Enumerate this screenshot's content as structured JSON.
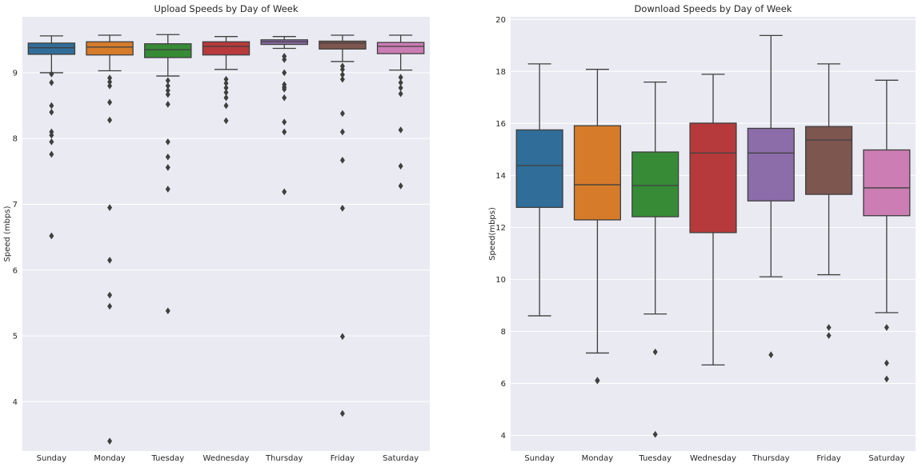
{
  "chart_data": [
    {
      "type": "box",
      "title": "Upload Speeds by Day of Week",
      "xlabel": "",
      "ylabel": "Speed (mbps)",
      "ylim": [
        3.25,
        9.85
      ],
      "yticks": [
        4,
        5,
        6,
        7,
        8,
        9
      ],
      "grid": true,
      "categories": [
        "Sunday",
        "Monday",
        "Tuesday",
        "Wednesday",
        "Thursday",
        "Friday",
        "Saturday"
      ],
      "colors": [
        "#3274a1",
        "#e1812c",
        "#3a923a",
        "#c03d3e",
        "#9372b2",
        "#845b53",
        "#d684bd"
      ],
      "boxes": [
        {
          "whislo": 9.0,
          "q1": 9.28,
          "med": 9.38,
          "q3": 9.45,
          "whishi": 9.56,
          "fliers": [
            8.98,
            8.85,
            8.5,
            8.4,
            8.1,
            8.05,
            7.95,
            7.76,
            6.52
          ]
        },
        {
          "whislo": 9.03,
          "q1": 9.27,
          "med": 9.39,
          "q3": 9.47,
          "whishi": 9.57,
          "fliers": [
            8.92,
            8.86,
            8.8,
            8.55,
            8.28,
            6.95,
            6.15,
            5.62,
            5.45,
            3.4
          ]
        },
        {
          "whislo": 8.95,
          "q1": 9.23,
          "med": 9.35,
          "q3": 9.44,
          "whishi": 9.58,
          "fliers": [
            8.88,
            8.8,
            8.73,
            8.67,
            8.52,
            7.95,
            7.72,
            7.56,
            7.23,
            5.38
          ]
        },
        {
          "whislo": 9.05,
          "q1": 9.27,
          "med": 9.4,
          "q3": 9.47,
          "whishi": 9.55,
          "fliers": [
            8.9,
            8.84,
            8.77,
            8.7,
            8.62,
            8.5,
            8.27
          ]
        },
        {
          "whislo": 9.37,
          "q1": 9.43,
          "med": 9.47,
          "q3": 9.5,
          "whishi": 9.55,
          "fliers": [
            9.25,
            9.2,
            9.0,
            8.82,
            8.78,
            8.75,
            8.62,
            8.25,
            8.1,
            7.19
          ]
        },
        {
          "whislo": 9.17,
          "q1": 9.36,
          "med": 9.45,
          "q3": 9.48,
          "whishi": 9.57,
          "fliers": [
            9.1,
            9.05,
            8.97,
            8.9,
            8.38,
            8.1,
            7.67,
            6.94,
            4.99,
            3.82
          ]
        },
        {
          "whislo": 9.04,
          "q1": 9.29,
          "med": 9.4,
          "q3": 9.46,
          "whishi": 9.57,
          "fliers": [
            8.93,
            8.85,
            8.77,
            8.68,
            8.13,
            7.58,
            7.28
          ]
        }
      ]
    },
    {
      "type": "box",
      "title": "Download Speeds by Day of Week",
      "xlabel": "",
      "ylabel": "Speed(mbps)",
      "ylim": [
        3.4,
        20.1
      ],
      "yticks": [
        4,
        6,
        8,
        10,
        12,
        14,
        16,
        18,
        20
      ],
      "grid": true,
      "categories": [
        "Sunday",
        "Monday",
        "Tuesday",
        "Wednesday",
        "Thursday",
        "Friday",
        "Saturday"
      ],
      "colors": [
        "#3274a1",
        "#e1812c",
        "#3a923a",
        "#c03d3e",
        "#9372b2",
        "#845b53",
        "#d684bd"
      ],
      "boxes": [
        {
          "whislo": 8.6,
          "q1": 12.77,
          "med": 14.38,
          "q3": 15.75,
          "whishi": 18.29,
          "fliers": []
        },
        {
          "whislo": 7.17,
          "q1": 12.29,
          "med": 13.64,
          "q3": 15.91,
          "whishi": 18.08,
          "fliers": [
            6.12,
            6.1
          ]
        },
        {
          "whislo": 8.67,
          "q1": 12.41,
          "med": 13.61,
          "q3": 14.9,
          "whishi": 17.59,
          "fliers": [
            7.21,
            4.04
          ]
        },
        {
          "whislo": 6.71,
          "q1": 11.8,
          "med": 14.86,
          "q3": 16.01,
          "whishi": 17.89,
          "fliers": []
        },
        {
          "whislo": 10.1,
          "q1": 13.02,
          "med": 14.86,
          "q3": 15.81,
          "whishi": 19.38,
          "fliers": [
            7.1
          ]
        },
        {
          "whislo": 10.18,
          "q1": 13.27,
          "med": 15.36,
          "q3": 15.88,
          "whishi": 18.29,
          "fliers": [
            8.15,
            7.84
          ]
        },
        {
          "whislo": 8.72,
          "q1": 12.45,
          "med": 13.52,
          "q3": 14.98,
          "whishi": 17.66,
          "fliers": [
            8.15,
            6.78,
            6.17
          ]
        }
      ]
    }
  ]
}
